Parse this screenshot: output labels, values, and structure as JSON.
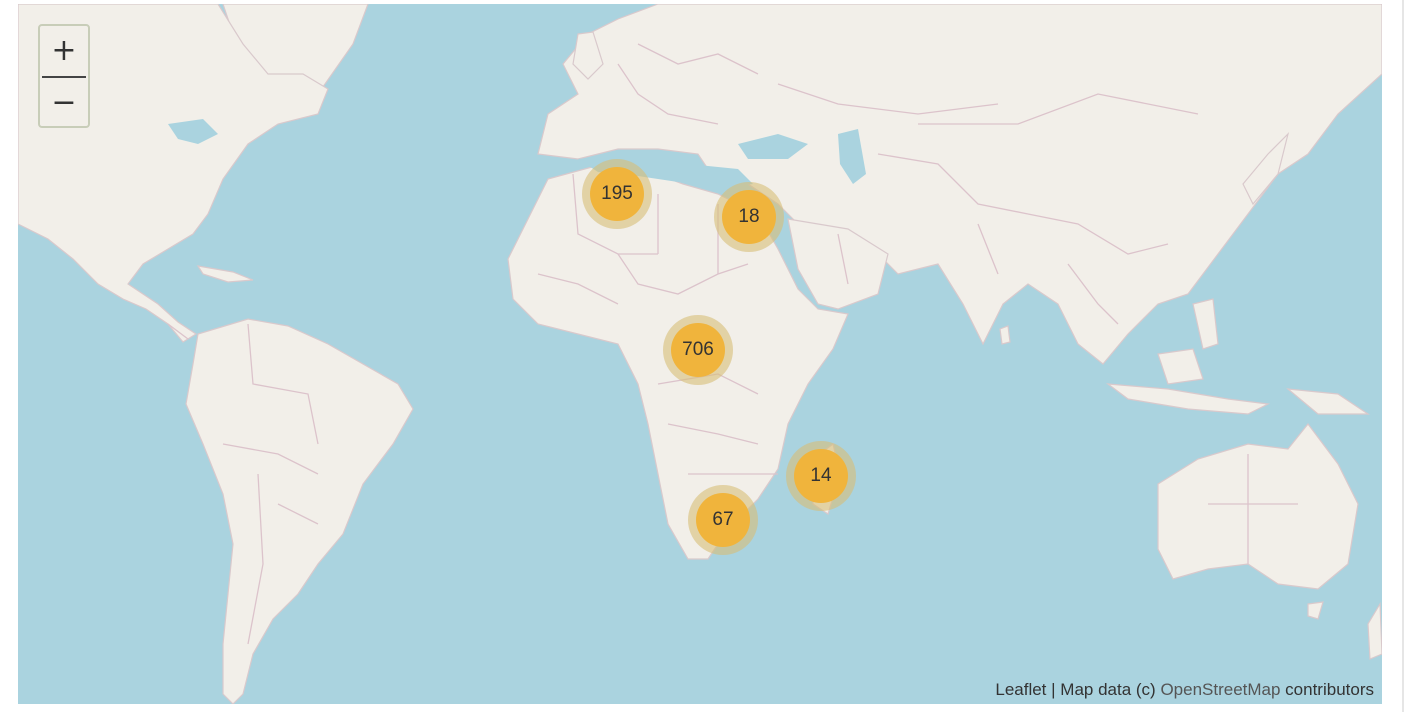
{
  "map": {
    "zoom_in_label": "+",
    "zoom_out_label": "−",
    "clusters": [
      {
        "id": "north-africa-west",
        "count": "195"
      },
      {
        "id": "egypt",
        "count": "18"
      },
      {
        "id": "central-africa",
        "count": "706"
      },
      {
        "id": "madagascar",
        "count": "14"
      },
      {
        "id": "southern-africa",
        "count": "67"
      }
    ],
    "attribution": {
      "leaflet": "Leaflet",
      "separator": " | ",
      "prefix": "Map data (c) ",
      "osm_link": "OpenStreetMap",
      "suffix": " contributors"
    },
    "colors": {
      "water": "#aad3df",
      "land": "#f2efe9",
      "cluster_inner": "#f0b43c",
      "cluster_outer": "#d7be78"
    }
  }
}
